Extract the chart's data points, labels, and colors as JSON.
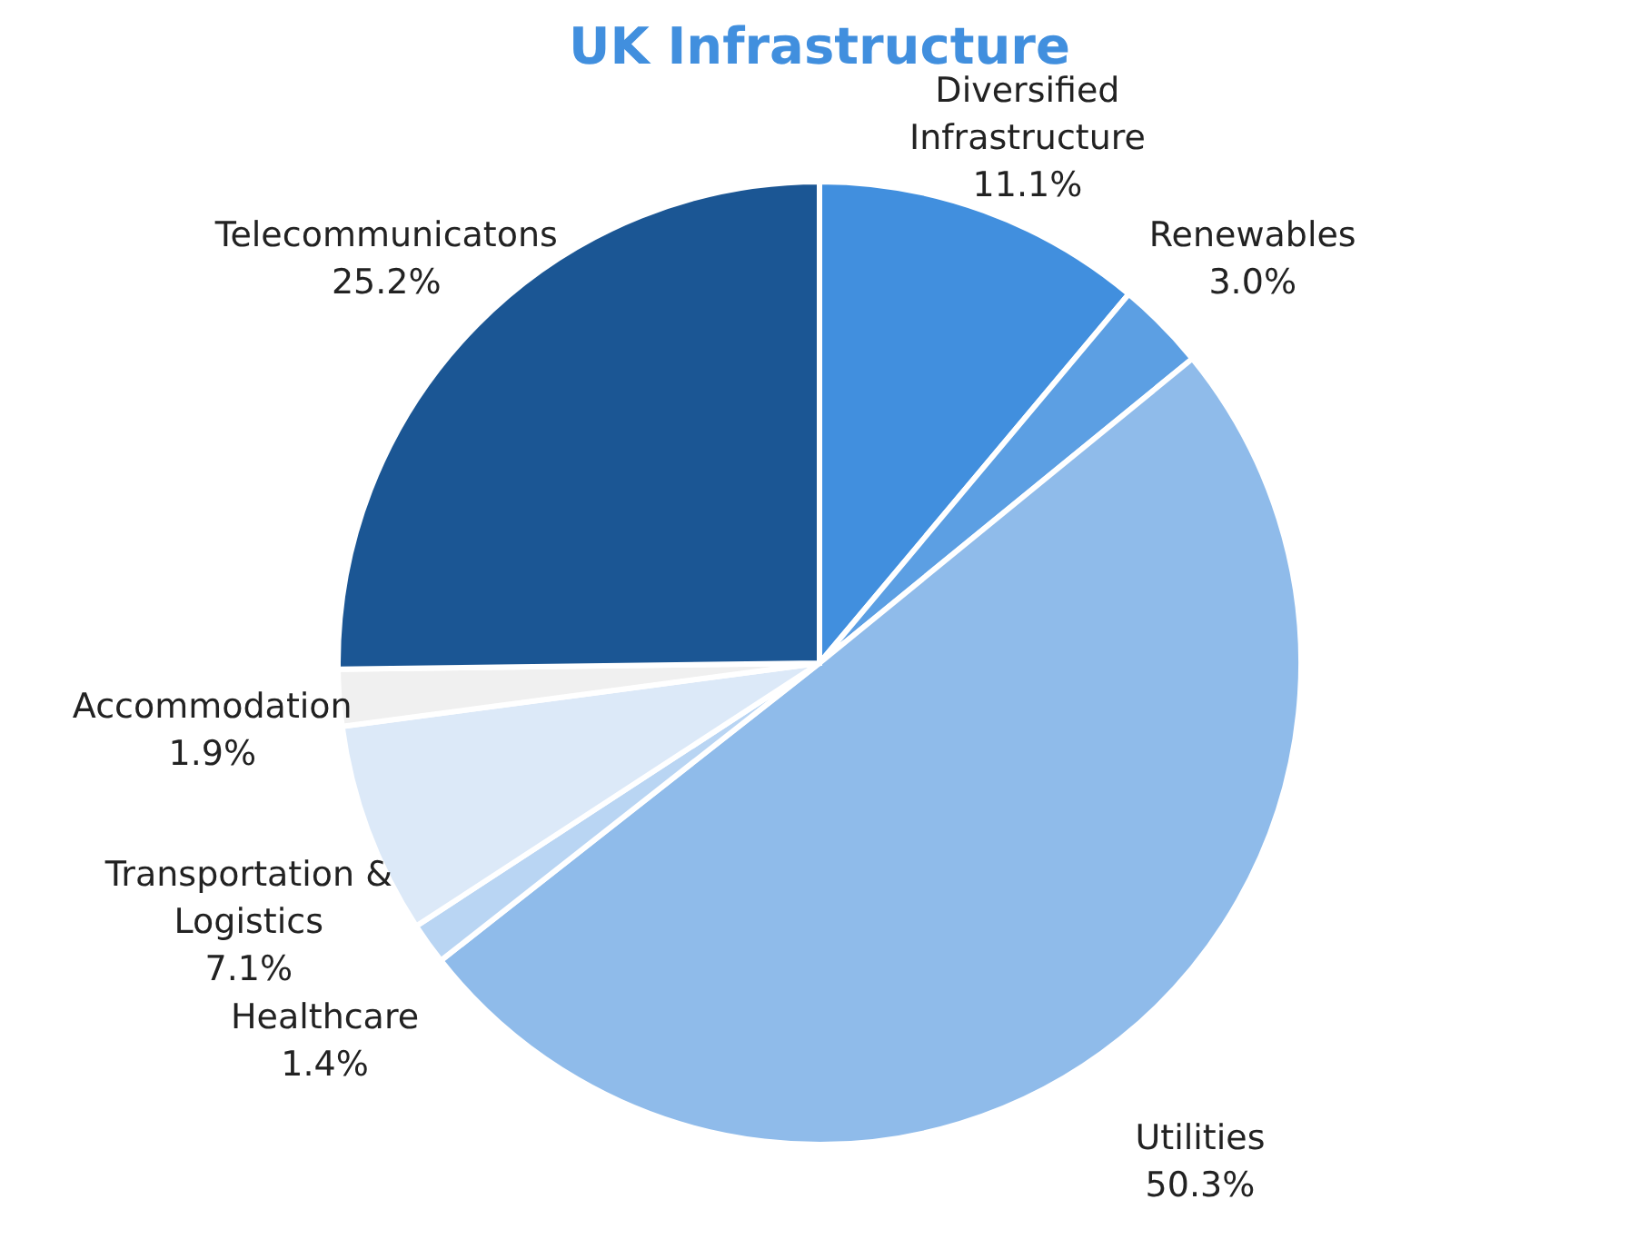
{
  "chart_data": {
    "type": "pie",
    "title": "UK Infrastructure",
    "categories": [
      "Diversified Infrastructure",
      "Renewables",
      "Utilities",
      "Healthcare",
      "Transportation & Logistics",
      "Accommodation",
      "Telecommunicatons"
    ],
    "values": [
      11.1,
      3.0,
      50.3,
      1.4,
      7.1,
      1.9,
      25.2
    ],
    "colors": [
      "#418fde",
      "#5c9fe3",
      "#8fbbea",
      "#b9d5f3",
      "#dce9f8",
      "#f0f0f0",
      "#1b5694"
    ],
    "value_labels": [
      "11.1%",
      "3.0%",
      "50.3%",
      "1.4%",
      "7.1%",
      "1.9%",
      "25.2%"
    ],
    "legend": false
  }
}
